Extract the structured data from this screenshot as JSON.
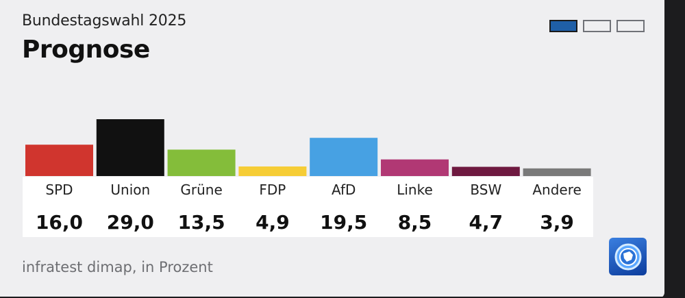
{
  "header": {
    "supertitle": "Bundestagswahl 2025",
    "title": "Prognose"
  },
  "pager": {
    "count": 3,
    "active_index": 0,
    "active_color": "#1f5fa7"
  },
  "footer": {
    "source": "infratest dimap, in Prozent"
  },
  "logo": {
    "icon": "tagesschau-logo-icon"
  },
  "chart_data": {
    "type": "bar",
    "categories": [
      "SPD",
      "Union",
      "Grüne",
      "FDP",
      "AfD",
      "Linke",
      "BSW",
      "Andere"
    ],
    "values": [
      16.0,
      29.0,
      13.5,
      4.9,
      19.5,
      8.5,
      4.7,
      3.9
    ],
    "value_labels": [
      "16,0",
      "29,0",
      "13,5",
      "4,9",
      "19,5",
      "8,5",
      "4,7",
      "3,9"
    ],
    "colors": [
      "#d0352e",
      "#111111",
      "#84bd3a",
      "#f6cd36",
      "#47a1e3",
      "#b13874",
      "#6e1940",
      "#7a7a7a"
    ],
    "ylim": [
      0,
      29.0
    ],
    "grid": false,
    "legend": "none"
  }
}
